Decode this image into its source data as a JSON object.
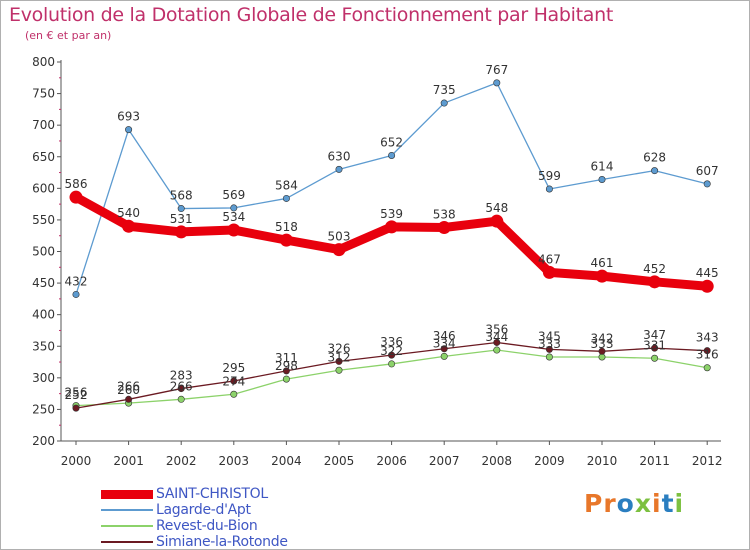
{
  "title": "Evolution de la Dotation Globale de Fonctionnement par Habitant",
  "subtitle": "(en € et par an)",
  "logo": {
    "text": "Proxiti",
    "colors": [
      "#e8772a",
      "#e8772a",
      "#2a7ec0",
      "#7cc040",
      "#e8772a",
      "#2a7ec0",
      "#7cc040"
    ]
  },
  "chart_data": {
    "type": "line",
    "x": [
      "2000",
      "2001",
      "2002",
      "2003",
      "2004",
      "2005",
      "2006",
      "2007",
      "2008",
      "2009",
      "2010",
      "2011",
      "2012"
    ],
    "ylim": [
      200,
      800
    ],
    "yticks": [
      200,
      250,
      300,
      350,
      400,
      450,
      500,
      550,
      600,
      650,
      700,
      750,
      800
    ],
    "grid": false,
    "legend_position": "bottom-left",
    "series": [
      {
        "name": "SAINT-CHRISTOL",
        "color": "#e8000d",
        "values": [
          586,
          540,
          531,
          534,
          518,
          503,
          539,
          538,
          548,
          467,
          461,
          452,
          445
        ],
        "labels": [
          "586",
          "540",
          "531",
          "534",
          "518",
          "503",
          "539",
          "538",
          "548",
          "467",
          "461",
          "452",
          "445"
        ],
        "emphasis": "thick"
      },
      {
        "name": "Lagarde-d'Apt",
        "color": "#5d9bd0",
        "values": [
          432,
          693,
          568,
          569,
          584,
          630,
          652,
          735,
          767,
          599,
          614,
          628,
          607
        ],
        "labels": [
          "432",
          "693",
          "568",
          "569",
          "584",
          "630",
          "652",
          "735",
          "767",
          "599",
          "614",
          "628",
          "607"
        ],
        "emphasis": "thin"
      },
      {
        "name": "Revest-du-Bion",
        "color": "#8cd26a",
        "values": [
          256,
          260,
          266,
          274,
          298,
          312,
          322,
          334,
          344,
          333,
          333,
          331,
          316
        ],
        "labels": [
          "256",
          "260",
          "266",
          "274",
          "298",
          "312",
          "322",
          "334",
          "344",
          "333",
          "333",
          "331",
          "316"
        ],
        "emphasis": "thin"
      },
      {
        "name": "Simiane-la-Rotonde",
        "color": "#6b1a22",
        "values": [
          252,
          266,
          283,
          295,
          311,
          326,
          336,
          346,
          356,
          345,
          342,
          347,
          343
        ],
        "labels": [
          "252",
          "266",
          "283",
          "295",
          "311",
          "326",
          "336",
          "346",
          "356",
          "345",
          "342",
          "347",
          "343"
        ],
        "emphasis": "thin"
      }
    ]
  }
}
